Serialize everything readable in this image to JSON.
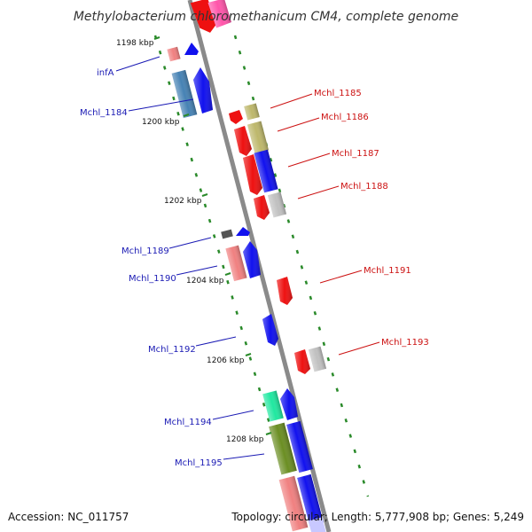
{
  "title": "Methylobacterium chloromethanicum CM4, complete genome",
  "accession": "Accession: NC_011757",
  "topology": "Topology: circular; Length: 5,777,908 bp; Genes: 5,249",
  "colors": {
    "label_left": "#1a1ab4",
    "label_right": "#cc1111",
    "backbone": "#8a8a8a",
    "ruler": "#2a8a2a"
  },
  "ticks": [
    {
      "label": "1198 kbp"
    },
    {
      "label": "1200 kbp"
    },
    {
      "label": "1202 kbp"
    },
    {
      "label": "1204 kbp"
    },
    {
      "label": "1206 kbp"
    },
    {
      "label": "1208 kbp"
    }
  ],
  "genes_left": [
    {
      "label": "infA"
    },
    {
      "label": "Mchl_1184"
    },
    {
      "label": "Mchl_1189"
    },
    {
      "label": "Mchl_1190"
    },
    {
      "label": "Mchl_1192"
    },
    {
      "label": "Mchl_1194"
    },
    {
      "label": "Mchl_1195"
    }
  ],
  "genes_right": [
    {
      "label": "Mchl_1185"
    },
    {
      "label": "Mchl_1186"
    },
    {
      "label": "Mchl_1187"
    },
    {
      "label": "Mchl_1188"
    },
    {
      "label": "Mchl_1191"
    },
    {
      "label": "Mchl_1193"
    }
  ]
}
